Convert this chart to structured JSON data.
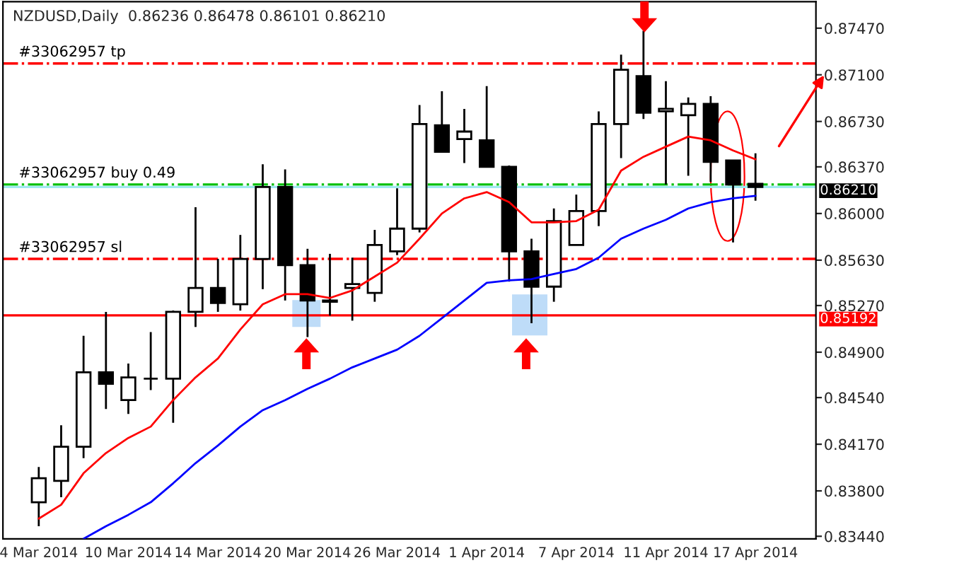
{
  "chart_data": {
    "type": "candlestick",
    "title": "NZDUSD,Daily  0.86236 0.86478 0.86101 0.86210",
    "categories": [
      "4 Mar 2014",
      null,
      null,
      null,
      "10 Mar 2014",
      null,
      null,
      null,
      "14 Mar 2014",
      null,
      null,
      null,
      "20 Mar 2014",
      null,
      null,
      null,
      "26 Mar 2014",
      null,
      null,
      null,
      "1 Apr 2014",
      null,
      null,
      null,
      "7 Apr 2014",
      null,
      null,
      null,
      "11 Apr 2014",
      null,
      null,
      null,
      "17 Apr 2014"
    ],
    "ohlc": [
      [
        0.8371,
        0.8399,
        0.8352,
        0.839
      ],
      [
        0.8388,
        0.8432,
        0.8375,
        0.8415
      ],
      [
        0.8415,
        0.8503,
        0.8406,
        0.8474
      ],
      [
        0.8474,
        0.8522,
        0.8445,
        0.8465
      ],
      [
        0.8452,
        0.8481,
        0.8441,
        0.847
      ],
      [
        0.8469,
        0.8506,
        0.846,
        0.8469
      ],
      [
        0.8469,
        0.8523,
        0.8434,
        0.8522
      ],
      [
        0.8522,
        0.8605,
        0.851,
        0.8541
      ],
      [
        0.8541,
        0.8564,
        0.8522,
        0.8529
      ],
      [
        0.8528,
        0.8583,
        0.8523,
        0.8564
      ],
      [
        0.8564,
        0.8639,
        0.854,
        0.8621
      ],
      [
        0.8621,
        0.8635,
        0.8531,
        0.8559
      ],
      [
        0.8559,
        0.8572,
        0.8502,
        0.8531
      ],
      [
        0.8531,
        0.8568,
        0.8519,
        0.853
      ],
      [
        0.8541,
        0.8565,
        0.8515,
        0.8544
      ],
      [
        0.8537,
        0.8587,
        0.853,
        0.8575
      ],
      [
        0.857,
        0.862,
        0.8567,
        0.8588
      ],
      [
        0.8588,
        0.8686,
        0.8585,
        0.8671
      ],
      [
        0.867,
        0.8697,
        0.8649,
        0.8649
      ],
      [
        0.8659,
        0.8683,
        0.864,
        0.8665
      ],
      [
        0.8658,
        0.8701,
        0.8637,
        0.8637
      ],
      [
        0.8637,
        0.8638,
        0.8546,
        0.857
      ],
      [
        0.857,
        0.858,
        0.8513,
        0.8542
      ],
      [
        0.8542,
        0.8604,
        0.853,
        0.8594
      ],
      [
        0.8575,
        0.8615,
        0.8575,
        0.8602
      ],
      [
        0.8602,
        0.8681,
        0.859,
        0.8671
      ],
      [
        0.8671,
        0.8726,
        0.8644,
        0.8714
      ],
      [
        0.8709,
        0.8745,
        0.8675,
        0.868
      ],
      [
        0.8681,
        0.8705,
        0.8623,
        0.8683
      ],
      [
        0.8678,
        0.8692,
        0.863,
        0.8687
      ],
      [
        0.8687,
        0.8693,
        0.8625,
        0.8641
      ],
      [
        0.8642,
        0.8642,
        0.8577,
        0.8623
      ],
      [
        0.86236,
        0.86478,
        0.86101,
        0.8621
      ]
    ],
    "series": [
      {
        "type": "line",
        "color": "#ff0000",
        "values": [
          0.8358,
          0.8369,
          0.8394,
          0.841,
          0.8422,
          0.8431,
          0.8452,
          0.847,
          0.8485,
          0.8508,
          0.8528,
          0.8536,
          0.8536,
          0.8533,
          0.8539,
          0.855,
          0.8561,
          0.858,
          0.86,
          0.8612,
          0.8617,
          0.8609,
          0.8593,
          0.8593,
          0.8594,
          0.8603,
          0.8634,
          0.8645,
          0.8653,
          0.8661,
          0.8658,
          0.865,
          0.8643
        ]
      },
      {
        "type": "line",
        "color": "#0000ff",
        "values": [
          null,
          null,
          0.8342,
          0.8352,
          0.8361,
          0.8371,
          0.8386,
          0.8402,
          0.8416,
          0.8431,
          0.8444,
          0.8452,
          0.8461,
          0.8469,
          0.8478,
          0.8485,
          0.8492,
          0.8503,
          0.8517,
          0.8531,
          0.8545,
          0.8547,
          0.8548,
          0.8552,
          0.8556,
          0.8565,
          0.858,
          0.8588,
          0.8595,
          0.8604,
          0.8609,
          0.8612,
          0.8614
        ]
      }
    ],
    "ylim": [
      0.8342,
      0.8768
    ],
    "yticks": [
      {
        "value": 0.8747,
        "label": "0.87470"
      },
      {
        "value": 0.871,
        "label": "0.87100"
      },
      {
        "value": 0.8673,
        "label": "0.86730"
      },
      {
        "value": 0.8637,
        "label": "0.86370"
      },
      {
        "value": 0.86,
        "label": "0.86000"
      },
      {
        "value": 0.8563,
        "label": "0.85630"
      },
      {
        "value": 0.8527,
        "label": "0.85270"
      },
      {
        "value": 0.849,
        "label": "0.84900"
      },
      {
        "value": 0.8454,
        "label": "0.84540"
      },
      {
        "value": 0.8417,
        "label": "0.84170"
      },
      {
        "value": 0.838,
        "label": "0.83800"
      },
      {
        "value": 0.8344,
        "label": "0.83440"
      }
    ],
    "ref_lines": [
      {
        "axis": "y",
        "value": 0.8719,
        "label": "#33062957 tp",
        "color": "#ff0000",
        "line_style": "dashed"
      },
      {
        "axis": "y",
        "value": 0.8623,
        "label": "#33062957 buy 0.49",
        "color": "#00c000",
        "line_style": "dashed"
      },
      {
        "axis": "y",
        "value": 0.8564,
        "label": "#33062957 sl",
        "color": "#ff0000",
        "line_style": "dashed"
      },
      {
        "axis": "y",
        "value": 0.8621,
        "label": "0.86210",
        "color": "#a0e8f0",
        "line_style": "solid"
      },
      {
        "axis": "y",
        "value": 0.85192,
        "label": "0.85192",
        "color": "#ff0000",
        "line_style": "solid"
      }
    ],
    "grid": false,
    "legend": false
  }
}
